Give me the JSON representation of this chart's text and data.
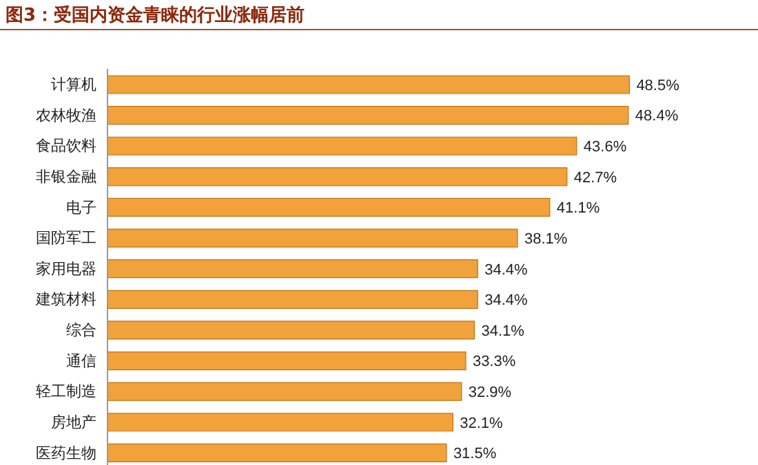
{
  "chart_data": {
    "type": "bar",
    "orientation": "horizontal",
    "title": "图3：受国内资金青睐的行业涨幅居前",
    "categories": [
      "计算机",
      "农林牧渔",
      "食品饮料",
      "非银金融",
      "电子",
      "国防军工",
      "家用电器",
      "建筑材料",
      "综合",
      "通信",
      "轻工制造",
      "房地产",
      "医药生物"
    ],
    "values": [
      48.5,
      48.4,
      43.6,
      42.7,
      41.1,
      38.1,
      34.4,
      34.4,
      34.1,
      33.3,
      32.9,
      32.1,
      31.5
    ],
    "value_labels": [
      "48.5%",
      "48.4%",
      "43.6%",
      "42.7%",
      "41.1%",
      "38.1%",
      "34.4%",
      "34.4%",
      "34.1%",
      "33.3%",
      "32.9%",
      "32.1%",
      "31.5%"
    ],
    "color": "#f2a23a"
  }
}
